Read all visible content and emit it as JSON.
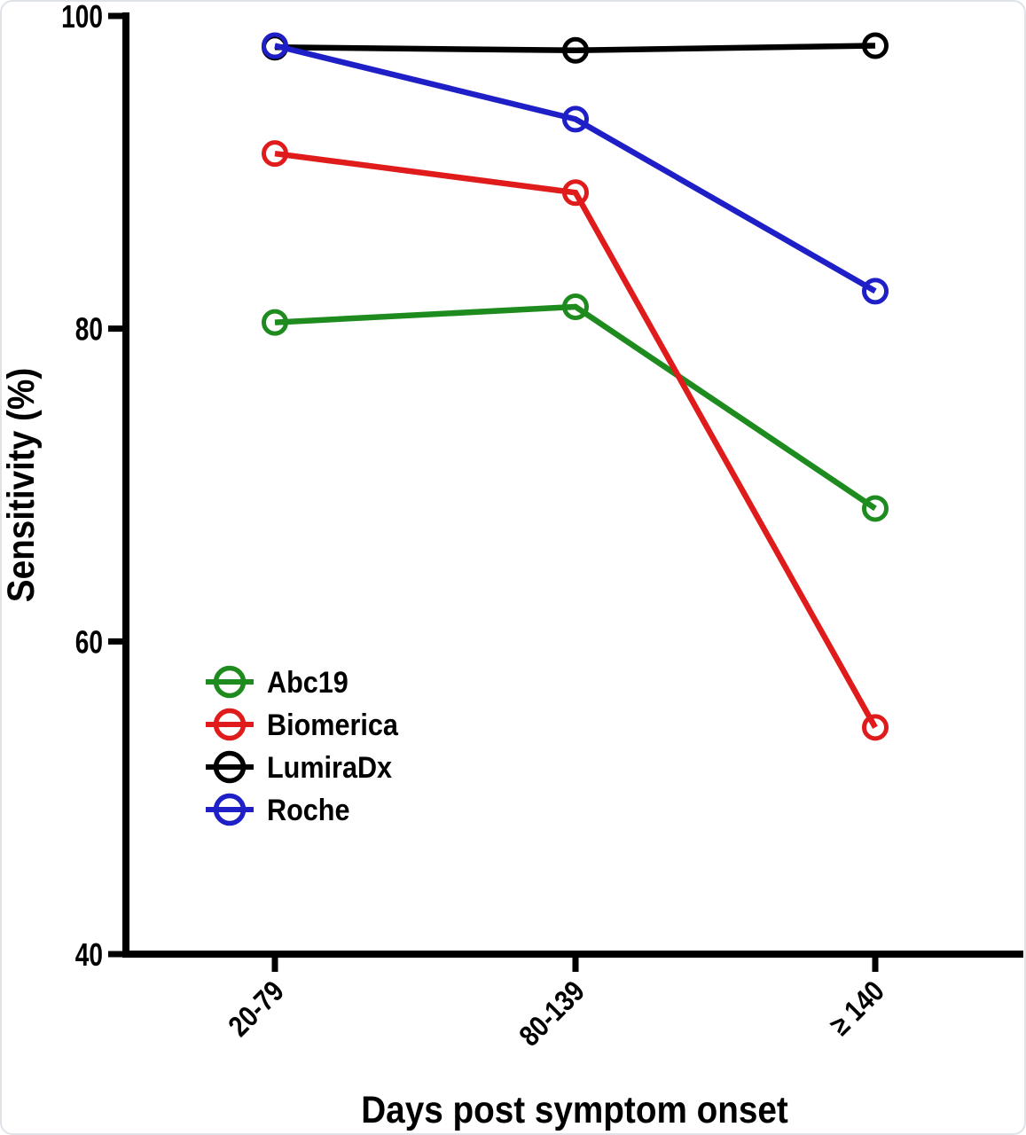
{
  "chart_data": {
    "type": "line",
    "title": "",
    "xlabel": "Days post symptom onset",
    "ylabel": "Sensitivity (%)",
    "categories": [
      "20-79",
      "80-139",
      "≥ 140"
    ],
    "series": [
      {
        "name": "Abc19",
        "color": "#1e8b1e",
        "values": [
          80.4,
          81.4,
          68.5
        ]
      },
      {
        "name": "Biomerica",
        "color": "#e01b1b",
        "values": [
          91.2,
          88.7,
          54.5
        ]
      },
      {
        "name": "LumiraDx",
        "color": "#000000",
        "values": [
          98.0,
          97.8,
          98.1
        ]
      },
      {
        "name": "Roche",
        "color": "#1f1fc8",
        "values": [
          98.1,
          93.4,
          82.4
        ]
      }
    ],
    "ylim": [
      40,
      100
    ],
    "yticks": [
      40,
      60,
      80,
      100
    ],
    "x_tick_rotation_deg": -45,
    "grid": false,
    "marker": "open-circle",
    "legend_position": "inside-left-middle",
    "axis_color": "#000000",
    "background_color": "#ffffff"
  }
}
